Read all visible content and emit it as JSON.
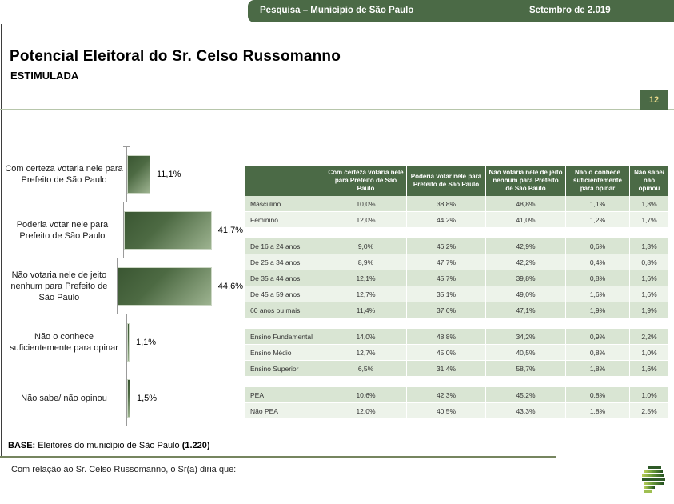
{
  "banner": {
    "title": "Pesquisa – Município de São Paulo",
    "date": "Setembro de 2.019"
  },
  "page": {
    "title": "Potencial Eleitoral do Sr. Celso Russomanno",
    "subtitle": "ESTIMULADA",
    "number": "12"
  },
  "colors": {
    "dark_green": "#4b6a46",
    "badge_text": "#e8d88a",
    "row_dark": "#d9e5d3",
    "row_light": "#edf3ea",
    "bar_gradient_start": "#3a5632",
    "bar_gradient_end": "#9db390",
    "light_green_rule": "#b7c6ab",
    "footer_rule": "#76855f"
  },
  "chart_data": [
    {
      "type": "bar",
      "orientation": "horizontal",
      "title": "Potencial Eleitoral do Sr. Celso Russomanno — Estimulada",
      "categories": [
        "Com certeza votaria nele para Prefeito de São Paulo",
        "Poderia votar nele para Prefeito de São Paulo",
        "Não votaria nele de jeito nenhum para Prefeito de São Paulo",
        "Não o conhece suficientemente para opinar",
        "Não sabe/ não opinou"
      ],
      "values": [
        11.1,
        41.7,
        44.6,
        1.1,
        1.5
      ],
      "value_labels": [
        "11,1%",
        "41,7%",
        "44,6%",
        "1,1%",
        "1,5%"
      ],
      "xlim": [
        0,
        50
      ],
      "grid": false,
      "legend": false
    },
    {
      "type": "table",
      "columns": [
        "Com certeza votaria nele para Prefeito de São Paulo",
        "Poderia votar nele para Prefeito de São Paulo",
        "Não votaria nele de jeito nenhum para Prefeito de São Paulo",
        "Não o conhece suficientemente para opinar",
        "Não sabe/ não opinou"
      ],
      "groups": [
        {
          "rows": [
            {
              "label": "Masculino",
              "values": [
                "10,0%",
                "38,8%",
                "48,8%",
                "1,1%",
                "1,3%"
              ]
            },
            {
              "label": "Feminino",
              "values": [
                "12,0%",
                "44,2%",
                "41,0%",
                "1,2%",
                "1,7%"
              ]
            }
          ]
        },
        {
          "rows": [
            {
              "label": "De 16 a 24 anos",
              "values": [
                "9,0%",
                "46,2%",
                "42,9%",
                "0,6%",
                "1,3%"
              ]
            },
            {
              "label": "De 25 a 34 anos",
              "values": [
                "8,9%",
                "47,7%",
                "42,2%",
                "0,4%",
                "0,8%"
              ]
            },
            {
              "label": "De 35 a 44 anos",
              "values": [
                "12,1%",
                "45,7%",
                "39,8%",
                "0,8%",
                "1,6%"
              ]
            },
            {
              "label": "De 45 a 59 anos",
              "values": [
                "12,7%",
                "35,1%",
                "49,0%",
                "1,6%",
                "1,6%"
              ]
            },
            {
              "label": "60 anos ou mais",
              "values": [
                "11,4%",
                "37,6%",
                "47,1%",
                "1,9%",
                "1,9%"
              ]
            }
          ]
        },
        {
          "rows": [
            {
              "label": "Ensino Fundamental",
              "values": [
                "14,0%",
                "48,8%",
                "34,2%",
                "0,9%",
                "2,2%"
              ]
            },
            {
              "label": "Ensino Médio",
              "values": [
                "12,7%",
                "45,0%",
                "40,5%",
                "0,8%",
                "1,0%"
              ]
            },
            {
              "label": "Ensino Superior",
              "values": [
                "6,5%",
                "31,4%",
                "58,7%",
                "1,8%",
                "1,6%"
              ]
            }
          ]
        },
        {
          "rows": [
            {
              "label": "PEA",
              "values": [
                "10,6%",
                "42,3%",
                "45,2%",
                "0,8%",
                "1,0%"
              ]
            },
            {
              "label": "Não PEA",
              "values": [
                "12,0%",
                "40,5%",
                "43,3%",
                "1,8%",
                "2,5%"
              ]
            }
          ]
        }
      ]
    }
  ],
  "footer": {
    "base_prefix": "BASE:",
    "base_text": " Eleitores do município de São Paulo ",
    "base_bold": "(1.220)",
    "question": "Com relação ao Sr. Celso Russomanno, o Sr(a) diria que:"
  }
}
